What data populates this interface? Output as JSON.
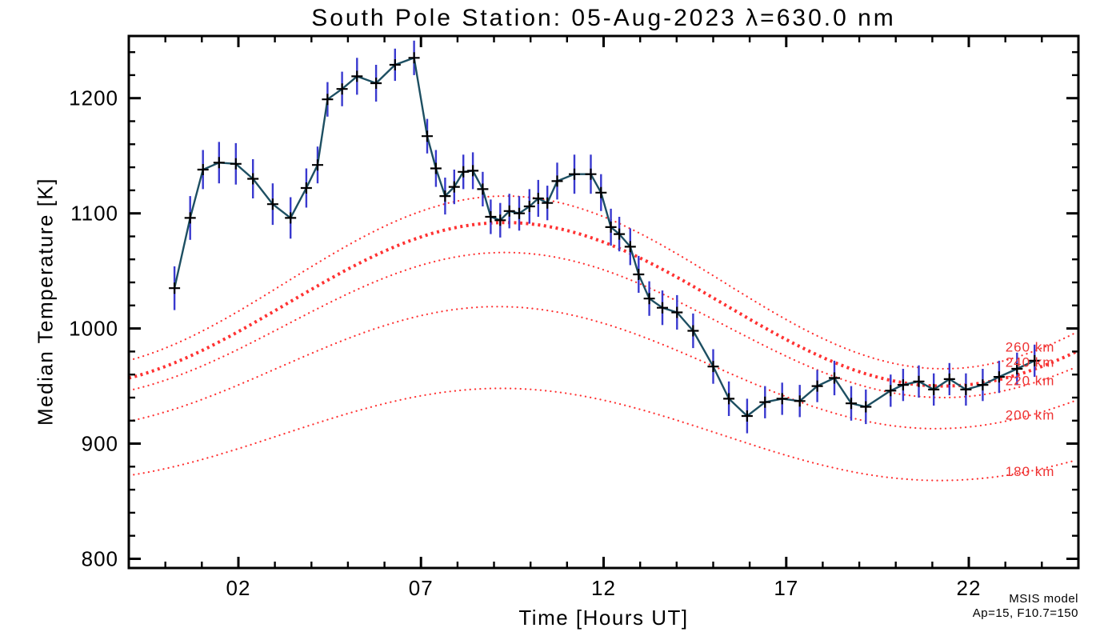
{
  "figure": {
    "background": "#ffffff"
  },
  "chart_data": {
    "type": "line",
    "title": "South Pole Station: 05-Aug-2023 λ=630.0 nm",
    "xlabel": "Time [Hours UT]",
    "ylabel": "Median Temperature [K]",
    "xlim": [
      -1,
      25
    ],
    "ylim": [
      792,
      1254
    ],
    "grid": false,
    "x_axis": {
      "major_ticks": [
        {
          "value": 2,
          "label": "02"
        },
        {
          "value": 7,
          "label": "07"
        },
        {
          "value": 12,
          "label": "12"
        },
        {
          "value": 17,
          "label": "17"
        },
        {
          "value": 22,
          "label": "22"
        }
      ],
      "minor_tick_step": 1,
      "minor_tick_range": [
        0,
        24
      ]
    },
    "y_axis": {
      "major_ticks": [
        {
          "value": 800,
          "label": "800"
        },
        {
          "value": 900,
          "label": "900"
        },
        {
          "value": 1000,
          "label": "1000"
        },
        {
          "value": 1100,
          "label": "1100"
        },
        {
          "value": 1200,
          "label": "1200"
        }
      ],
      "minor_tick_step": 20,
      "minor_tick_range": [
        800,
        1240
      ]
    },
    "series": {
      "name": "median-temperature-630nm",
      "points_format": [
        "hour_ut",
        "temperature_K",
        "error_K"
      ],
      "points": [
        [
          0.25,
          1035,
          19
        ],
        [
          0.68,
          1096,
          19
        ],
        [
          1.03,
          1138,
          17
        ],
        [
          1.47,
          1144,
          18
        ],
        [
          1.93,
          1143,
          18
        ],
        [
          2.4,
          1130,
          17
        ],
        [
          2.94,
          1108,
          18
        ],
        [
          3.43,
          1096,
          18
        ],
        [
          3.86,
          1122,
          17
        ],
        [
          4.17,
          1142,
          16
        ],
        [
          4.44,
          1199,
          15
        ],
        [
          4.84,
          1208,
          15
        ],
        [
          5.25,
          1219,
          16
        ],
        [
          5.77,
          1213,
          16
        ],
        [
          6.29,
          1229,
          14
        ],
        [
          6.81,
          1235,
          15
        ],
        [
          7.17,
          1167,
          15
        ],
        [
          7.41,
          1139,
          16
        ],
        [
          7.66,
          1115,
          16
        ],
        [
          7.91,
          1123,
          15
        ],
        [
          8.16,
          1136,
          15
        ],
        [
          8.42,
          1137,
          16
        ],
        [
          8.69,
          1121,
          15
        ],
        [
          8.91,
          1097,
          15
        ],
        [
          9.17,
          1094,
          15
        ],
        [
          9.42,
          1102,
          15
        ],
        [
          9.69,
          1100,
          15
        ],
        [
          9.97,
          1106,
          15
        ],
        [
          10.21,
          1113,
          16
        ],
        [
          10.46,
          1109,
          15
        ],
        [
          10.73,
          1128,
          16
        ],
        [
          11.2,
          1134,
          17
        ],
        [
          11.65,
          1134,
          17
        ],
        [
          11.93,
          1118,
          16
        ],
        [
          12.2,
          1088,
          16
        ],
        [
          12.43,
          1082,
          15
        ],
        [
          12.73,
          1071,
          16
        ],
        [
          12.96,
          1047,
          16
        ],
        [
          13.25,
          1026,
          15
        ],
        [
          13.61,
          1018,
          15
        ],
        [
          14.01,
          1014,
          15
        ],
        [
          14.45,
          998,
          15
        ],
        [
          15.0,
          967,
          15
        ],
        [
          15.43,
          939,
          15
        ],
        [
          15.93,
          924,
          15
        ],
        [
          16.42,
          936,
          14
        ],
        [
          16.89,
          939,
          14
        ],
        [
          17.37,
          937,
          14
        ],
        [
          17.85,
          950,
          14
        ],
        [
          18.32,
          957,
          15
        ],
        [
          18.78,
          935,
          15
        ],
        [
          19.18,
          932,
          15
        ],
        [
          19.86,
          946,
          14
        ],
        [
          20.2,
          951,
          14
        ],
        [
          20.63,
          954,
          14
        ],
        [
          21.04,
          947,
          14
        ],
        [
          21.47,
          956,
          14
        ],
        [
          21.92,
          947,
          14
        ],
        [
          22.38,
          951,
          14
        ],
        [
          22.83,
          958,
          14
        ],
        [
          23.32,
          965,
          14
        ],
        [
          23.8,
          972,
          14
        ]
      ]
    },
    "model_curves": [
      {
        "label": "260 km",
        "mean": 1040,
        "amp": 75,
        "peak_hour": 9.3,
        "thick": false,
        "label_T": 984
      },
      {
        "label": "240 km",
        "mean": 1021,
        "amp": 71,
        "peak_hour": 9.3,
        "thick": true,
        "label_T": 971
      },
      {
        "label": "220 km",
        "mean": 1003,
        "amp": 63,
        "peak_hour": 9.3,
        "thick": false,
        "label_T": 955
      },
      {
        "label": "200 km",
        "mean": 966,
        "amp": 53,
        "peak_hour": 9.1,
        "thick": false,
        "label_T": 925
      },
      {
        "label": "180 km",
        "mean": 908,
        "amp": 40,
        "peak_hour": 9.2,
        "thick": false,
        "label_T": 876
      }
    ],
    "model_label_anchor_hour": 23.0,
    "annotations": {
      "line1": "MSIS model",
      "line2": "Ap=15, F10.7=150"
    },
    "colors": {
      "data_line": "#1d4f62",
      "marker": "#000000",
      "error_bar": "#3939cf",
      "model": "#ff3232",
      "model_label": "#ee3333",
      "annotation": "#ee3333",
      "frame": "#000000"
    }
  }
}
